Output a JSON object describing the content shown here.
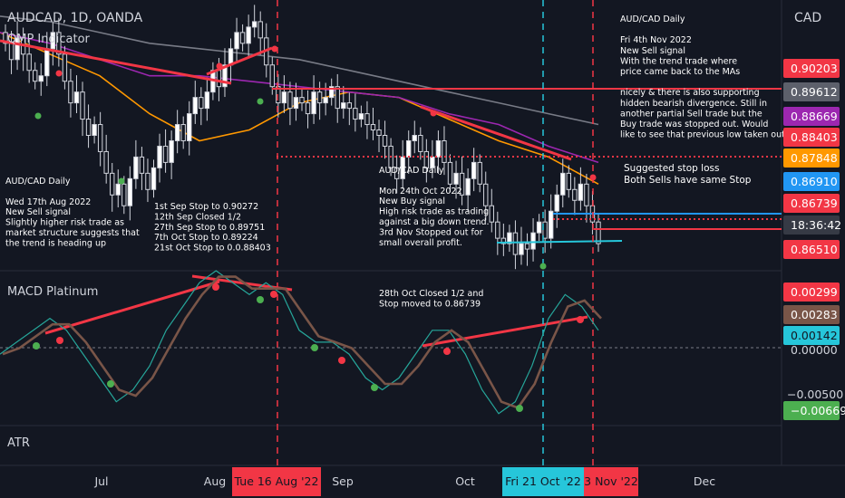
{
  "header": {
    "symbol": "AUDCAD, 1D, OANDA",
    "indicator_price": "QMP Indicator",
    "indicator_macd": "MACD Platinum",
    "indicator_atr": "ATR"
  },
  "axis": {
    "currency": "CAD",
    "price_labels": [
      {
        "text": "0.90203",
        "value": 0.90203,
        "bg": "#f23645"
      },
      {
        "text": "0.89612",
        "value": 0.89612,
        "bg": "#5d606b"
      },
      {
        "text": "0.88669",
        "value": 0.88669,
        "bg": "#9c27b0"
      },
      {
        "text": "0.88403",
        "value": 0.88403,
        "bg": "#f23645"
      },
      {
        "text": "0.87848",
        "value": 0.87848,
        "bg": "#ff9800"
      },
      {
        "text": "0.86910",
        "value": 0.8691,
        "bg": "#2196f3"
      },
      {
        "text": "0.86739",
        "value": 0.86739,
        "bg": "#f23645"
      },
      {
        "text": "18:36:42",
        "value": 0.8662,
        "bg": "#363a45"
      },
      {
        "text": "0.86510",
        "value": 0.8651,
        "bg": "#f23645"
      }
    ],
    "macd_labels": [
      {
        "text": "0.00299",
        "bg": "#f23645",
        "fg": "#ffffff"
      },
      {
        "text": "0.00283",
        "bg": "#795548",
        "fg": "#ffffff"
      },
      {
        "text": "0.00142",
        "bg": "#26c6da",
        "fg": "#131722"
      },
      {
        "text": "0.00000",
        "bg": "",
        "fg": "#d1d4dc"
      },
      {
        "text": "−0.00500",
        "bg": "",
        "fg": "#d1d4dc"
      },
      {
        "text": "−0.00669",
        "bg": "#4caf50",
        "fg": "#ffffff"
      }
    ],
    "time_labels": [
      {
        "text": "Jul",
        "x": 112
      },
      {
        "text": "Aug",
        "x": 237
      },
      {
        "text": "Sep",
        "x": 378
      },
      {
        "text": "Oct",
        "x": 513
      },
      {
        "text": "Nov",
        "x": 688
      },
      {
        "text": "Dec",
        "x": 777
      }
    ],
    "time_highlights": [
      {
        "text": "Tue 16 Aug '22",
        "bg": "#f23645"
      },
      {
        "text": "Fri 21 Oct '22",
        "bg": "#26c6da"
      },
      {
        "text": "3 Nov '22",
        "bg": "#f23645"
      }
    ]
  },
  "annotations": {
    "nov": [
      "AUD/CAD Daily",
      "",
      "Fri 4th Nov 2022",
      "New Sell signal",
      "With the trend trade where",
      "price came back to the MAs",
      "",
      "nicely & there is also supporting",
      "hidden bearish divergence. Still in",
      "another partial Sell trade but the",
      "Buy trade was stopped out. Would",
      "like to see that previous low taken out."
    ],
    "aug": [
      "AUD/CAD Daily",
      "",
      "Wed 17th Aug 2022",
      "New Sell signal",
      "Slightly higher risk trade as",
      "market structure suggests that",
      "the trend is heading up"
    ],
    "sep": [
      "1st Sep Stop to 0.90272",
      "12th Sep Closed 1/2",
      "27th Sep Stop to 0.89751",
      "7th Oct Stop to 0.89224",
      "21st Oct Stop to 0.0.88403"
    ],
    "oct": [
      "AUD/CAD Daily",
      "",
      "Mon 24th Oct 2022",
      "New Buy signal",
      "High risk trade as trading",
      "against a big down trend.",
      "3rd Nov Stopped out for",
      "small overall profit."
    ],
    "stop": [
      "Suggested stop loss",
      "Both Sells have same Stop"
    ],
    "macd_note": [
      "28th Oct Closed 1/2 and",
      "Stop moved to 0.86739"
    ]
  },
  "chart_data": {
    "type": "candlestick",
    "symbol": "AUDCAD",
    "timeframe": "1D",
    "price_range": [
      0.862,
      0.912
    ],
    "series": [
      {
        "name": "close",
        "values": [
          0.904,
          0.901,
          0.905,
          0.902,
          0.899,
          0.897,
          0.898,
          0.903,
          0.906,
          0.902,
          0.897,
          0.893,
          0.895,
          0.89,
          0.887,
          0.889,
          0.884,
          0.88,
          0.876,
          0.878,
          0.874,
          0.879,
          0.883,
          0.88,
          0.877,
          0.881,
          0.885,
          0.882,
          0.886,
          0.889,
          0.886,
          0.891,
          0.894,
          0.892,
          0.895,
          0.899,
          0.896,
          0.9,
          0.903,
          0.906,
          0.904,
          0.907,
          0.908,
          0.905,
          0.9,
          0.896,
          0.893,
          0.895,
          0.892,
          0.894,
          0.893,
          0.891,
          0.895,
          0.893,
          0.894,
          0.896,
          0.892,
          0.893,
          0.892,
          0.89,
          0.891,
          0.889,
          0.888,
          0.887,
          0.885,
          0.881,
          0.879,
          0.883,
          0.886,
          0.887,
          0.884,
          0.881,
          0.883,
          0.886,
          0.882,
          0.878,
          0.88,
          0.876,
          0.879,
          0.882,
          0.878,
          0.874,
          0.871,
          0.868,
          0.867,
          0.869,
          0.865,
          0.867,
          0.866,
          0.869,
          0.871,
          0.868,
          0.873,
          0.876,
          0.88,
          0.877,
          0.875,
          0.878,
          0.874,
          0.871,
          0.867
        ]
      }
    ],
    "moving_averages": [
      {
        "name": "MA fast",
        "color": "#ff9800",
        "values": [
          0.906,
          0.902,
          0.898,
          0.891,
          0.886,
          0.888,
          0.893,
          0.895,
          0.894,
          0.89,
          0.886,
          0.883,
          0.878
        ]
      },
      {
        "name": "MA mid",
        "color": "#9c27b0",
        "values": [
          0.906,
          0.904,
          0.901,
          0.898,
          0.898,
          0.897,
          0.896,
          0.895,
          0.894,
          0.891,
          0.889,
          0.885,
          0.882
        ]
      },
      {
        "name": "MA slow",
        "color": "#787b86",
        "values": [
          0.909,
          0.908,
          0.906,
          0.904,
          0.903,
          0.902,
          0.901,
          0.899,
          0.897,
          0.895,
          0.893,
          0.891,
          0.889
        ]
      }
    ],
    "macd": {
      "range": [
        -0.008,
        0.005
      ],
      "zero_line": 0.0,
      "macd_line": [
        -0.002,
        -0.001,
        0.0,
        0.001,
        0.0,
        -0.002,
        -0.004,
        -0.006,
        -0.005,
        -0.003,
        0.0,
        0.002,
        0.004,
        0.005,
        0.004,
        0.003,
        0.004,
        0.003,
        0.0,
        -0.001,
        -0.001,
        -0.002,
        -0.004,
        -0.005,
        -0.004,
        -0.002,
        0.0,
        0.0,
        -0.002,
        -0.005,
        -0.007,
        -0.006,
        -0.003,
        0.001,
        0.003,
        0.002,
        0.0
      ]
    },
    "markers": [
      {
        "type": "sell",
        "date": "16 Aug 2022"
      },
      {
        "type": "buy",
        "date": "21 Oct 2022"
      },
      {
        "type": "sell",
        "date": "3 Nov 2022"
      }
    ]
  }
}
